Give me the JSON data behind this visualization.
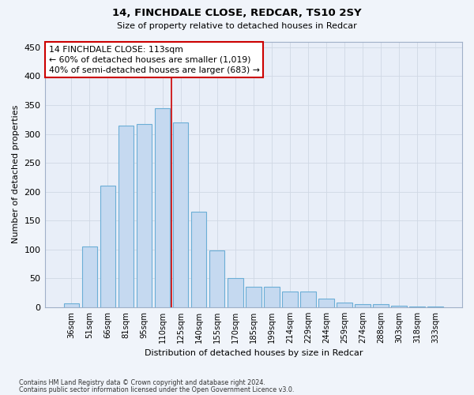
{
  "title1": "14, FINCHDALE CLOSE, REDCAR, TS10 2SY",
  "title2": "Size of property relative to detached houses in Redcar",
  "xlabel": "Distribution of detached houses by size in Redcar",
  "ylabel": "Number of detached properties",
  "bar_labels": [
    "36sqm",
    "51sqm",
    "66sqm",
    "81sqm",
    "95sqm",
    "110sqm",
    "125sqm",
    "140sqm",
    "155sqm",
    "170sqm",
    "185sqm",
    "199sqm",
    "214sqm",
    "229sqm",
    "244sqm",
    "259sqm",
    "274sqm",
    "288sqm",
    "303sqm",
    "318sqm",
    "333sqm"
  ],
  "bar_values": [
    7,
    105,
    210,
    315,
    317,
    345,
    320,
    165,
    98,
    50,
    35,
    35,
    27,
    27,
    15,
    8,
    5,
    5,
    2,
    1,
    1
  ],
  "bar_color": "#c5d9f0",
  "bar_edgecolor": "#6baed6",
  "annotation_text_line1": "14 FINCHDALE CLOSE: 113sqm",
  "annotation_text_line2": "← 60% of detached houses are smaller (1,019)",
  "annotation_text_line3": "40% of semi-detached houses are larger (683) →",
  "annotation_box_color": "#ffffff",
  "annotation_box_edgecolor": "#cc0000",
  "vline_color": "#cc0000",
  "vline_x_index": 5.5,
  "ylim": [
    0,
    460
  ],
  "yticks": [
    0,
    50,
    100,
    150,
    200,
    250,
    300,
    350,
    400,
    450
  ],
  "grid_color": "#d0d8e4",
  "background_color": "#f0f4fa",
  "plot_bg_color": "#e8eef8",
  "footnote1": "Contains HM Land Registry data © Crown copyright and database right 2024.",
  "footnote2": "Contains public sector information licensed under the Open Government Licence v3.0."
}
